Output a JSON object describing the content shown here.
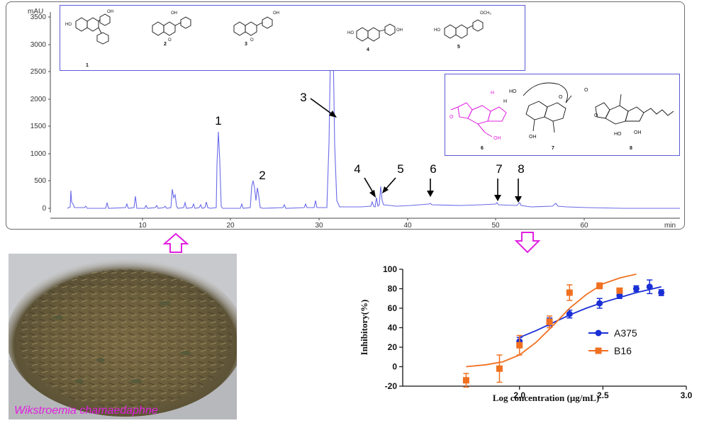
{
  "hplc": {
    "y_unit": "mAU",
    "x_unit": "min",
    "y_ticks": [
      "3500",
      "3000",
      "2500",
      "2000",
      "1500",
      "1000",
      "500",
      "0"
    ],
    "x_ticks": [
      "10",
      "20",
      "30",
      "40",
      "50",
      "60"
    ],
    "peak_labels": [
      "1",
      "2",
      "3",
      "4",
      "5",
      "6",
      "7",
      "8"
    ]
  },
  "flavonoids": {
    "compound_numbers": [
      "1",
      "2",
      "3",
      "4",
      "5"
    ],
    "substituent_labels": [
      "HO",
      "OH",
      "OH",
      "O",
      "O",
      "OH",
      "HO",
      "OH",
      "HO",
      "OCH₃"
    ]
  },
  "terpenoids": {
    "compound_numbers": [
      "6",
      "7",
      "8"
    ],
    "atom_labels": [
      "H",
      "HO",
      "H",
      "O",
      "OH",
      "OH",
      "O",
      "O",
      "OH",
      "HO",
      "O"
    ]
  },
  "photo": {
    "caption": "Wikstroemia chamaedaphne"
  },
  "chart_data": {
    "type": "scatter",
    "xlabel": "Log concentration (μg/mL)",
    "ylabel": "Inhibitory(%)",
    "xlim": [
      1.3,
      3.0
    ],
    "ylim": [
      -20,
      100
    ],
    "x_ticks": [
      "2.0",
      "2.5",
      "3.0"
    ],
    "y_ticks": [
      "100",
      "80",
      "60",
      "40",
      "20",
      "0",
      "-20"
    ],
    "legend_position": "right",
    "series": [
      {
        "name": "A375",
        "color": "#1a2fd6",
        "marker": "circle",
        "points": [
          {
            "x": 2.0,
            "y": 26,
            "err": 4
          },
          {
            "x": 2.18,
            "y": 46,
            "err": 4
          },
          {
            "x": 2.3,
            "y": 54,
            "err": 4
          },
          {
            "x": 2.48,
            "y": 65,
            "err": 5
          },
          {
            "x": 2.6,
            "y": 73,
            "err": 3
          },
          {
            "x": 2.7,
            "y": 80,
            "err": 3
          },
          {
            "x": 2.78,
            "y": 82,
            "err": 7
          },
          {
            "x": 2.85,
            "y": 76,
            "err": 3
          }
        ],
        "fit": [
          [
            2.0,
            30
          ],
          [
            2.1,
            37
          ],
          [
            2.2,
            45
          ],
          [
            2.3,
            53
          ],
          [
            2.4,
            60
          ],
          [
            2.5,
            66
          ],
          [
            2.6,
            71
          ],
          [
            2.7,
            76
          ],
          [
            2.8,
            80
          ],
          [
            2.85,
            82
          ]
        ]
      },
      {
        "name": "B16",
        "color": "#f07020",
        "marker": "square",
        "points": [
          {
            "x": 1.68,
            "y": -14,
            "err": 7
          },
          {
            "x": 1.88,
            "y": -2,
            "err": 14
          },
          {
            "x": 2.0,
            "y": 22,
            "err": 10
          },
          {
            "x": 2.18,
            "y": 46,
            "err": 6
          },
          {
            "x": 2.3,
            "y": 76,
            "err": 8
          },
          {
            "x": 2.48,
            "y": 83,
            "err": 3
          },
          {
            "x": 2.6,
            "y": 78,
            "err": 2
          }
        ],
        "fit": [
          [
            1.68,
            0
          ],
          [
            1.8,
            2
          ],
          [
            1.9,
            5
          ],
          [
            2.0,
            12
          ],
          [
            2.1,
            25
          ],
          [
            2.2,
            42
          ],
          [
            2.3,
            60
          ],
          [
            2.4,
            74
          ],
          [
            2.5,
            85
          ],
          [
            2.6,
            91
          ],
          [
            2.7,
            95
          ]
        ]
      }
    ]
  }
}
